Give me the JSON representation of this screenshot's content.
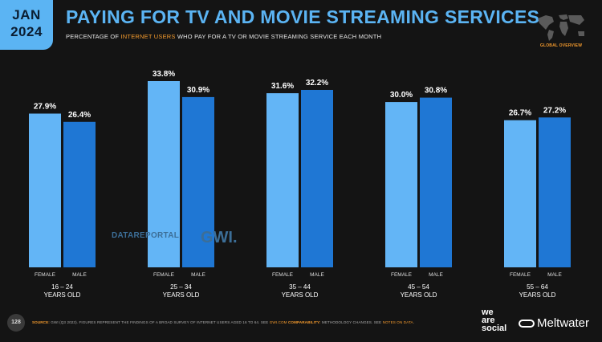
{
  "badge": {
    "month": "JAN",
    "year": "2024"
  },
  "header": {
    "title": "PAYING FOR TV AND MOVIE STREAMING SERVICES",
    "subtitle_pre": "PERCENTAGE OF ",
    "subtitle_hl": "INTERNET USERS",
    "subtitle_post": " WHO PAY FOR A TV OR MOVIE STREAMING SERVICE EACH MONTH",
    "region": "GLOBAL OVERVIEW"
  },
  "colors": {
    "female": "#63b5f6",
    "male": "#1f77d4",
    "accent": "#f39a2d",
    "title": "#5bb4f3"
  },
  "chart_data": {
    "type": "bar",
    "categories": [
      "16 – 24",
      "25 – 34",
      "35 – 44",
      "45 – 54",
      "55 – 64"
    ],
    "category_suffix": "YEARS OLD",
    "series": [
      {
        "name": "FEMALE",
        "values": [
          27.9,
          33.8,
          31.6,
          30.0,
          26.7
        ],
        "labels": [
          "27.9%",
          "33.8%",
          "31.6%",
          "30.0%",
          "26.7%"
        ]
      },
      {
        "name": "MALE",
        "values": [
          26.4,
          30.9,
          32.2,
          30.8,
          27.2
        ],
        "labels": [
          "26.4%",
          "30.9%",
          "32.2%",
          "30.8%",
          "27.2%"
        ]
      }
    ],
    "unit": "%",
    "ylim": [
      0,
      33.8
    ]
  },
  "watermark": {
    "datareportal": "DATAREPORTAL",
    "gwi": "GWI."
  },
  "footer": {
    "page": "128",
    "source_label": "SOURCE:",
    "source_text": " GWI (Q3 2023). FIGURES REPRESENT THE FINDINGS OF A BROAD SURVEY OF INTERNET USERS AGED 16 TO 64. SEE ",
    "source_link": "GWI.COM",
    "comp_label": " COMPARABILITY:",
    "comp_text": " METHODOLOGY CHANGES. SEE ",
    "comp_link": "NOTES ON DATA",
    "comp_end": "."
  },
  "brands": {
    "ws_line1": "we",
    "ws_line2": "are",
    "ws_line3": "social",
    "meltwater": "Meltwater"
  }
}
